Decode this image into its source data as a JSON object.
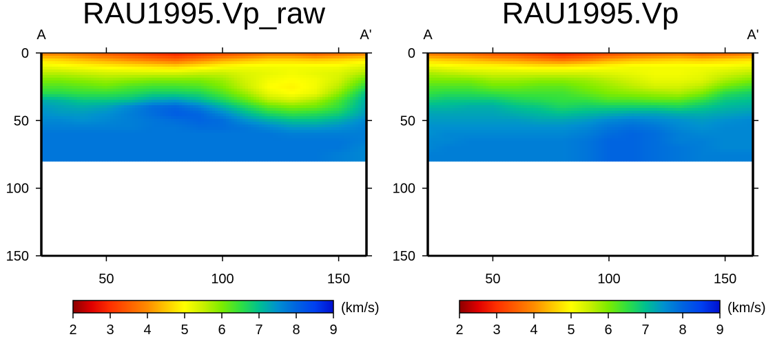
{
  "chart_data": [
    {
      "type": "heatmap",
      "title": "RAU1995.Vp_raw",
      "start_label": "A",
      "end_label": "A'",
      "xlim": [
        22,
        162
      ],
      "ylim": [
        0,
        150
      ],
      "y_inverted": true,
      "xticks": [
        50,
        100,
        150
      ],
      "yticks": [
        0,
        50,
        100,
        150
      ],
      "x": [
        22,
        30,
        40,
        50,
        60,
        70,
        80,
        90,
        100,
        110,
        120,
        130,
        140,
        150,
        162
      ],
      "depth": [
        0,
        5,
        10,
        15,
        20,
        25,
        30,
        35,
        40,
        45,
        50,
        55,
        60,
        65,
        70,
        75,
        80
      ],
      "vp": [
        [
          3.8,
          3.8,
          3.6,
          3.4,
          3.2,
          3.0,
          2.8,
          3.0,
          3.2,
          3.4,
          3.6,
          3.6,
          3.4,
          3.6,
          3.8
        ],
        [
          4.7,
          4.6,
          4.4,
          4.2,
          4.0,
          3.8,
          3.6,
          3.9,
          4.2,
          4.4,
          4.6,
          4.6,
          4.5,
          4.6,
          4.8
        ],
        [
          5.2,
          5.1,
          5.0,
          4.9,
          4.8,
          4.7,
          4.6,
          4.8,
          5.0,
          5.1,
          5.1,
          5.1,
          5.1,
          5.1,
          5.3
        ],
        [
          5.6,
          5.6,
          5.5,
          5.4,
          5.4,
          5.4,
          5.4,
          5.5,
          5.5,
          5.3,
          5.2,
          5.1,
          5.2,
          5.3,
          5.7
        ],
        [
          6.0,
          6.0,
          5.9,
          5.8,
          5.9,
          6.0,
          6.0,
          6.0,
          5.8,
          5.4,
          5.1,
          5.0,
          5.1,
          5.4,
          6.2
        ],
        [
          6.3,
          6.3,
          6.2,
          6.1,
          6.3,
          6.4,
          6.4,
          6.3,
          6.0,
          5.5,
          5.0,
          4.9,
          5.1,
          5.6,
          6.6
        ],
        [
          6.6,
          6.6,
          6.5,
          6.5,
          6.6,
          6.8,
          6.8,
          6.7,
          6.3,
          5.8,
          5.2,
          5.0,
          5.2,
          5.9,
          7.0
        ],
        [
          7.2,
          7.1,
          6.9,
          6.9,
          7.0,
          7.3,
          7.4,
          7.1,
          6.7,
          6.2,
          5.6,
          5.4,
          5.7,
          6.3,
          7.2
        ],
        [
          7.4,
          7.3,
          7.2,
          7.3,
          7.6,
          7.9,
          8.0,
          7.7,
          7.2,
          6.7,
          6.2,
          6.0,
          6.1,
          6.5,
          7.3
        ],
        [
          7.5,
          7.4,
          7.4,
          7.5,
          7.7,
          7.9,
          8.1,
          8.0,
          7.6,
          7.1,
          6.7,
          6.5,
          6.6,
          6.8,
          7.4
        ],
        [
          7.6,
          7.6,
          7.5,
          7.6,
          7.7,
          7.8,
          7.9,
          8.0,
          7.9,
          7.5,
          7.2,
          7.0,
          7.0,
          7.2,
          7.6
        ],
        [
          7.7,
          7.7,
          7.7,
          7.7,
          7.7,
          7.8,
          7.8,
          7.9,
          7.9,
          7.8,
          7.6,
          7.4,
          7.4,
          7.5,
          7.7
        ],
        [
          7.8,
          7.8,
          7.8,
          7.8,
          7.8,
          7.8,
          7.8,
          7.8,
          7.8,
          7.8,
          7.8,
          7.7,
          7.7,
          7.7,
          7.7
        ],
        [
          7.8,
          7.8,
          7.8,
          7.8,
          7.8,
          7.8,
          7.8,
          7.8,
          7.8,
          7.8,
          7.8,
          7.8,
          7.8,
          7.8,
          7.7
        ],
        [
          7.8,
          7.8,
          7.8,
          7.8,
          7.8,
          7.8,
          7.8,
          7.8,
          7.8,
          7.8,
          7.8,
          7.8,
          7.8,
          7.8,
          7.6
        ],
        [
          7.8,
          7.8,
          7.8,
          7.8,
          7.8,
          7.8,
          7.8,
          7.8,
          7.8,
          7.8,
          7.8,
          7.8,
          7.8,
          7.7,
          7.6
        ],
        [
          7.8,
          7.8,
          7.8,
          7.8,
          7.8,
          7.8,
          7.8,
          7.8,
          7.8,
          7.8,
          7.8,
          7.8,
          7.8,
          7.7,
          7.6
        ]
      ],
      "colorbar": {
        "ticks": [
          2,
          3,
          4,
          5,
          6,
          7,
          8,
          9
        ],
        "min": 2,
        "max": 9,
        "unit": "(km/s)"
      }
    },
    {
      "type": "heatmap",
      "title": "RAU1995.Vp",
      "start_label": "A",
      "end_label": "A'",
      "xlim": [
        22,
        162
      ],
      "ylim": [
        0,
        150
      ],
      "y_inverted": true,
      "xticks": [
        50,
        100,
        150
      ],
      "yticks": [
        0,
        50,
        100,
        150
      ],
      "x": [
        22,
        30,
        40,
        50,
        60,
        70,
        80,
        90,
        100,
        110,
        120,
        130,
        140,
        150,
        162
      ],
      "depth": [
        0,
        5,
        10,
        15,
        20,
        25,
        30,
        35,
        40,
        45,
        50,
        55,
        60,
        65,
        70,
        75,
        80
      ],
      "vp": [
        [
          3.7,
          3.6,
          3.5,
          3.3,
          3.2,
          3.0,
          2.8,
          3.0,
          3.2,
          3.4,
          3.5,
          3.6,
          3.4,
          3.5,
          3.7
        ],
        [
          4.6,
          4.5,
          4.4,
          4.2,
          4.1,
          3.9,
          3.7,
          3.9,
          4.2,
          4.4,
          4.5,
          4.6,
          4.5,
          4.6,
          4.7
        ],
        [
          5.2,
          5.1,
          5.0,
          5.0,
          4.9,
          4.8,
          4.8,
          4.9,
          5.0,
          5.1,
          5.1,
          5.1,
          5.1,
          5.1,
          5.2
        ],
        [
          5.7,
          5.6,
          5.5,
          5.4,
          5.4,
          5.4,
          5.4,
          5.4,
          5.3,
          5.2,
          5.1,
          5.1,
          5.2,
          5.4,
          5.6
        ],
        [
          6.0,
          6.0,
          6.0,
          5.8,
          5.8,
          5.9,
          5.9,
          5.8,
          5.6,
          5.4,
          5.2,
          5.2,
          5.3,
          5.7,
          6.0
        ],
        [
          6.3,
          6.3,
          6.3,
          6.1,
          6.1,
          6.2,
          6.2,
          6.0,
          5.8,
          5.6,
          5.4,
          5.4,
          5.6,
          6.1,
          6.4
        ],
        [
          6.5,
          6.6,
          6.6,
          6.5,
          6.4,
          6.4,
          6.4,
          6.2,
          6.0,
          5.9,
          5.8,
          5.7,
          6.0,
          6.6,
          6.8
        ],
        [
          6.8,
          6.9,
          6.9,
          6.9,
          6.7,
          6.6,
          6.5,
          6.5,
          6.3,
          6.3,
          6.2,
          6.2,
          6.5,
          6.9,
          7.0
        ],
        [
          7.1,
          7.1,
          7.2,
          7.2,
          7.0,
          6.9,
          6.7,
          6.8,
          6.8,
          6.8,
          6.8,
          6.7,
          6.9,
          7.1,
          7.2
        ],
        [
          7.3,
          7.3,
          7.3,
          7.3,
          7.2,
          7.1,
          7.0,
          7.1,
          7.2,
          7.3,
          7.3,
          7.2,
          7.2,
          7.3,
          7.4
        ],
        [
          7.4,
          7.4,
          7.4,
          7.4,
          7.4,
          7.3,
          7.3,
          7.4,
          7.6,
          7.7,
          7.6,
          7.5,
          7.4,
          7.5,
          7.6
        ],
        [
          7.5,
          7.5,
          7.5,
          7.5,
          7.5,
          7.5,
          7.5,
          7.6,
          7.8,
          7.9,
          7.8,
          7.6,
          7.5,
          7.6,
          7.6
        ],
        [
          7.5,
          7.6,
          7.6,
          7.6,
          7.6,
          7.6,
          7.6,
          7.7,
          7.9,
          8.0,
          7.9,
          7.7,
          7.6,
          7.6,
          7.6
        ],
        [
          7.6,
          7.6,
          7.7,
          7.7,
          7.7,
          7.7,
          7.7,
          7.8,
          8.0,
          8.0,
          7.9,
          7.7,
          7.7,
          7.6,
          7.6
        ],
        [
          7.6,
          7.7,
          7.7,
          7.7,
          7.7,
          7.7,
          7.7,
          7.8,
          8.0,
          8.0,
          7.9,
          7.8,
          7.7,
          7.6,
          7.6
        ],
        [
          7.7,
          7.7,
          7.7,
          7.7,
          7.7,
          7.7,
          7.7,
          7.8,
          8.0,
          8.0,
          7.9,
          7.8,
          7.7,
          7.7,
          7.7
        ],
        [
          7.7,
          7.7,
          7.7,
          7.7,
          7.7,
          7.7,
          7.7,
          7.8,
          8.0,
          8.0,
          7.9,
          7.8,
          7.7,
          7.7,
          7.7
        ]
      ],
      "colorbar": {
        "ticks": [
          2,
          3,
          4,
          5,
          6,
          7,
          8,
          9
        ],
        "min": 2,
        "max": 9,
        "unit": "(km/s)"
      }
    }
  ]
}
